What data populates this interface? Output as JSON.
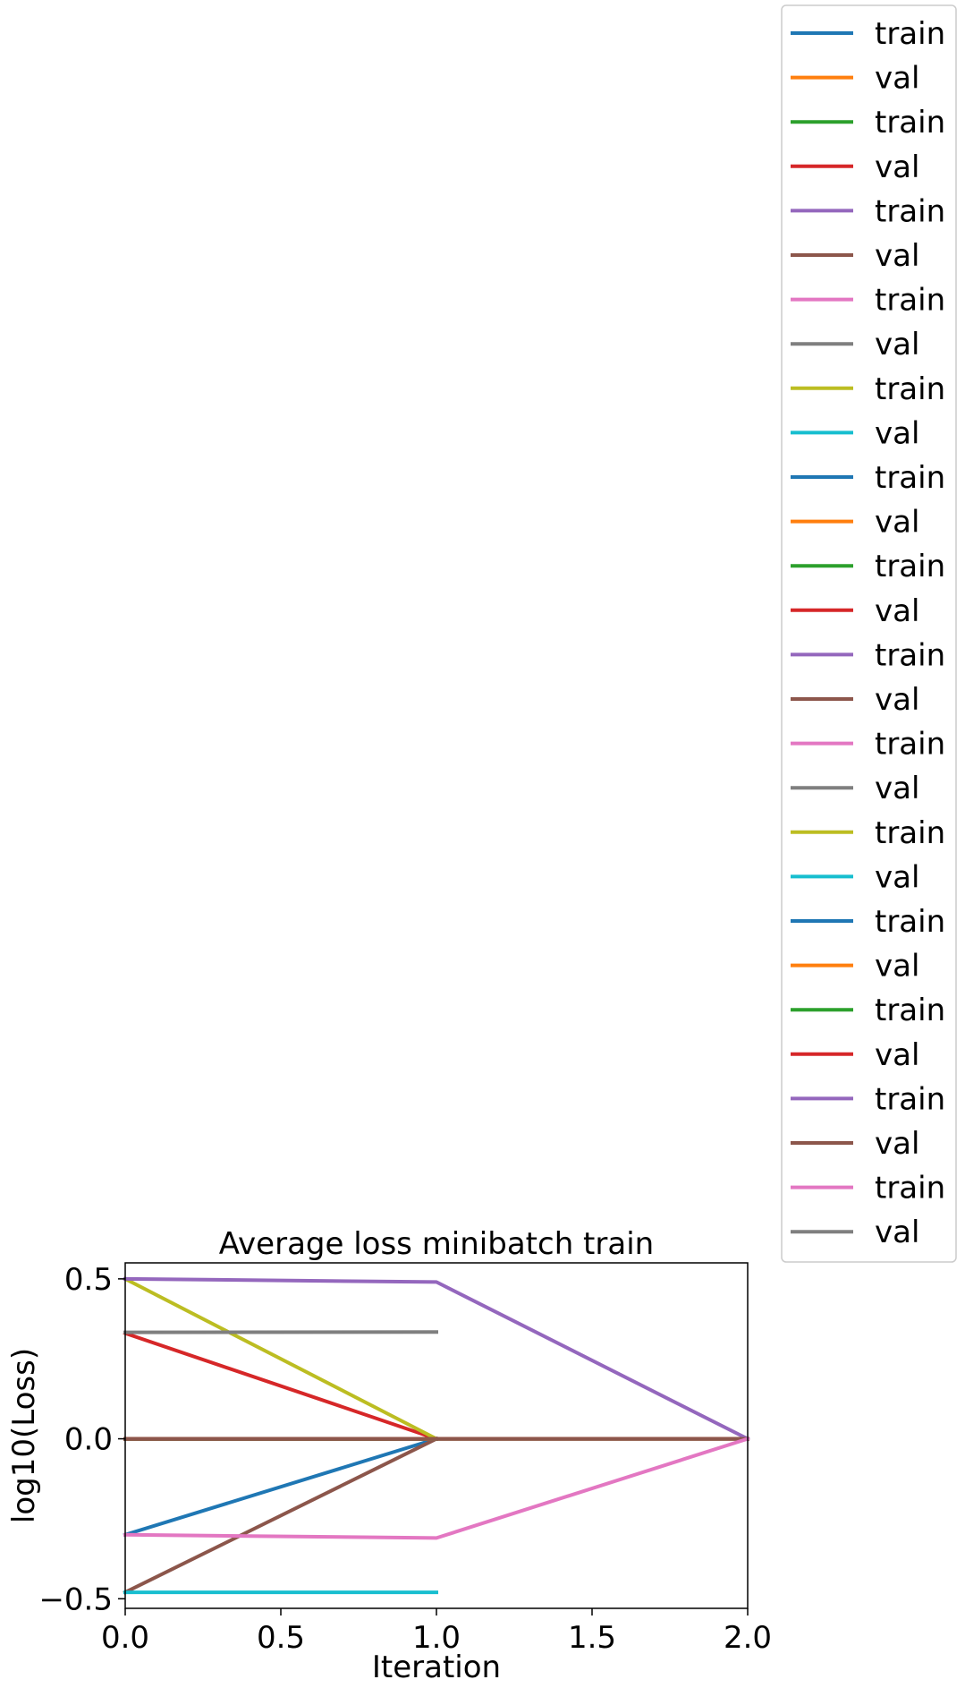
{
  "chart_data": {
    "type": "line",
    "title": "Average loss minibatch train",
    "xlabel": "Iteration",
    "ylabel": "log10(Loss)",
    "xlim": [
      0,
      2
    ],
    "ylim": [
      -0.53,
      0.55
    ],
    "xticks": [
      0.0,
      0.5,
      1.0,
      1.5,
      2.0
    ],
    "xtick_labels": [
      "0.0",
      "0.5",
      "1.0",
      "1.5",
      "2.0"
    ],
    "yticks": [
      -0.5,
      0.0,
      0.5
    ],
    "ytick_labels": [
      "−0.5",
      "0.0",
      "0.5"
    ],
    "grid": false,
    "legend_position": "outside upper right",
    "series": [
      {
        "name": "train",
        "color": "#1f77b4",
        "x": [
          0,
          1
        ],
        "y": [
          -0.3,
          0.0
        ]
      },
      {
        "name": "val",
        "color": "#ff7f0e",
        "x": [
          0
        ],
        "y": [
          0.0
        ]
      },
      {
        "name": "train",
        "color": "#2ca02c",
        "x": [
          0,
          1
        ],
        "y": [
          0.0,
          0.0
        ]
      },
      {
        "name": "val",
        "color": "#d62728",
        "x": [
          0,
          1
        ],
        "y": [
          0.33,
          0.0
        ]
      },
      {
        "name": "train",
        "color": "#9467bd",
        "x": [
          0,
          1
        ],
        "y": [
          0.0,
          0.0
        ]
      },
      {
        "name": "val",
        "color": "#8c564b",
        "x": [
          0,
          1
        ],
        "y": [
          -0.48,
          0.0
        ]
      },
      {
        "name": "train",
        "color": "#e377c2",
        "x": [
          0,
          1
        ],
        "y": [
          0.0,
          0.0
        ]
      },
      {
        "name": "val",
        "color": "#7f7f7f",
        "x": [
          0,
          1
        ],
        "y": [
          0.0,
          0.0
        ]
      },
      {
        "name": "train",
        "color": "#bcbd22",
        "x": [
          0,
          1
        ],
        "y": [
          0.5,
          0.0
        ]
      },
      {
        "name": "val",
        "color": "#17becf",
        "x": [
          0,
          1
        ],
        "y": [
          -0.48,
          -0.48
        ]
      },
      {
        "name": "train",
        "color": "#1f77b4",
        "x": [
          0,
          1
        ],
        "y": [
          0.0,
          0.0
        ]
      },
      {
        "name": "val",
        "color": "#ff7f0e",
        "x": [
          0,
          1
        ],
        "y": [
          0.0,
          0.0
        ]
      },
      {
        "name": "train",
        "color": "#2ca02c",
        "x": [
          0,
          1
        ],
        "y": [
          0.0,
          0.0
        ]
      },
      {
        "name": "val",
        "color": "#d62728",
        "x": [
          0,
          1
        ],
        "y": [
          0.0,
          0.0
        ]
      },
      {
        "name": "train",
        "color": "#9467bd",
        "x": [
          0,
          1
        ],
        "y": [
          0.0,
          0.0
        ]
      },
      {
        "name": "val",
        "color": "#8c564b",
        "x": [
          0,
          1
        ],
        "y": [
          0.0,
          0.0
        ]
      },
      {
        "name": "train",
        "color": "#e377c2",
        "x": [
          0,
          1
        ],
        "y": [
          0.0,
          0.0
        ]
      },
      {
        "name": "val",
        "color": "#7f7f7f",
        "x": [
          0,
          1
        ],
        "y": [
          0.0,
          0.0
        ]
      },
      {
        "name": "train",
        "color": "#bcbd22",
        "x": [
          0,
          1
        ],
        "y": [
          0.0,
          0.0
        ]
      },
      {
        "name": "val",
        "color": "#17becf",
        "x": [
          0,
          1
        ],
        "y": [
          0.0,
          0.0
        ]
      },
      {
        "name": "train",
        "color": "#1f77b4",
        "x": [
          0,
          1,
          2
        ],
        "y": [
          0.0,
          0.0,
          0.0
        ]
      },
      {
        "name": "val",
        "color": "#ff7f0e",
        "x": [
          0,
          1,
          2
        ],
        "y": [
          0.0,
          0.0,
          0.0
        ]
      },
      {
        "name": "train",
        "color": "#2ca02c",
        "x": [
          0,
          1,
          2
        ],
        "y": [
          0.0,
          0.0,
          0.0
        ]
      },
      {
        "name": "val",
        "color": "#d62728",
        "x": [
          0,
          1,
          2
        ],
        "y": [
          0.0,
          0.0,
          0.0
        ]
      },
      {
        "name": "train",
        "color": "#9467bd",
        "x": [
          0,
          1,
          2
        ],
        "y": [
          0.5,
          0.49,
          0.0
        ]
      },
      {
        "name": "val",
        "color": "#8c564b",
        "x": [
          0,
          1,
          2
        ],
        "y": [
          0.0,
          0.0,
          0.0
        ]
      },
      {
        "name": "train",
        "color": "#e377c2",
        "x": [
          0,
          1,
          2
        ],
        "y": [
          -0.3,
          -0.31,
          0.0
        ]
      },
      {
        "name": "val",
        "color": "#7f7f7f",
        "x": [
          0,
          1
        ],
        "y": [
          0.333,
          0.334
        ]
      }
    ]
  }
}
